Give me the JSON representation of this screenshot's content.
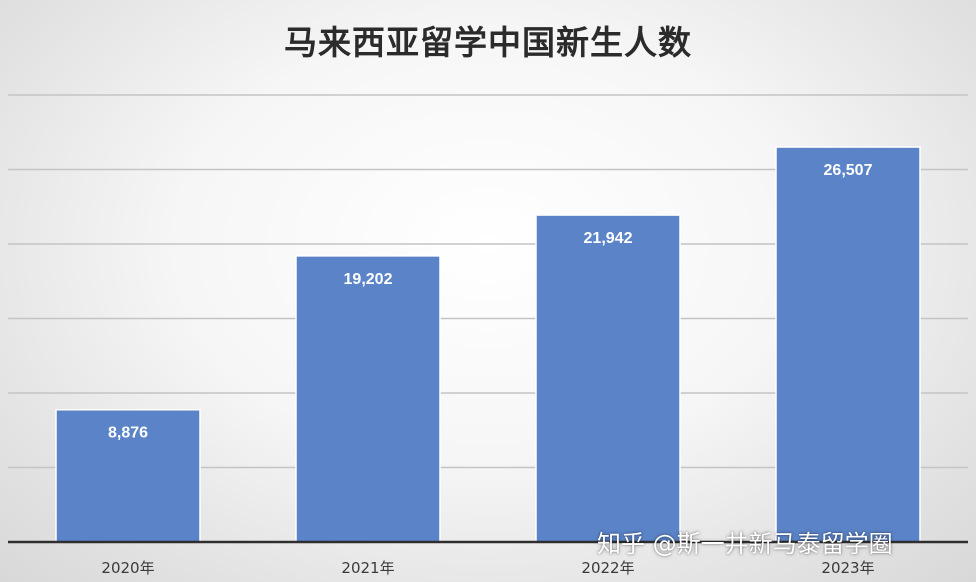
{
  "chart_data": {
    "type": "bar",
    "title": "马来西亚留学中国新生人数",
    "categories": [
      "2020年",
      "2021年",
      "2022年",
      "2023年"
    ],
    "values": [
      8876,
      19202,
      21942,
      26507
    ],
    "value_labels": [
      "8,876",
      "19,202",
      "21,942",
      "26,507"
    ],
    "xlabel": "",
    "ylabel": "",
    "ylim": [
      0,
      30000
    ],
    "y_gridlines": [
      5000,
      10000,
      15000,
      20000,
      25000,
      30000
    ],
    "grid": true,
    "legend": "none",
    "bar_color": "#5b84c8",
    "label_color": "#ffffff"
  },
  "watermark": "知乎 @斯一井新马泰留学圈"
}
